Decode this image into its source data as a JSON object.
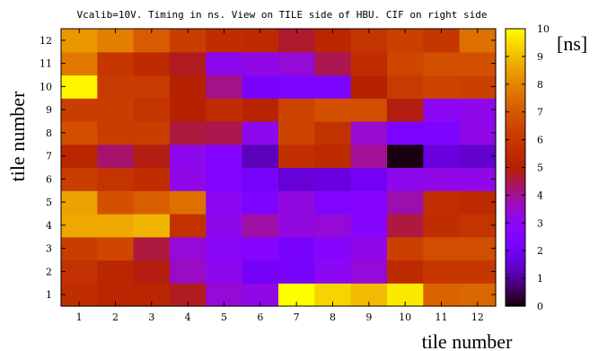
{
  "chart_data": {
    "type": "heatmap",
    "title": "Vcalib=10V. Timing in ns. View on TILE side of HBU. CIF on right side",
    "xlabel": "tile number",
    "ylabel": "tile number",
    "colorbar_unit": "[ns]",
    "x_categories": [
      "1",
      "2",
      "3",
      "4",
      "5",
      "6",
      "7",
      "8",
      "9",
      "10",
      "11",
      "12"
    ],
    "y_categories": [
      "1",
      "2",
      "3",
      "4",
      "5",
      "6",
      "7",
      "8",
      "9",
      "10",
      "11",
      "12"
    ],
    "color_range": [
      0,
      10
    ],
    "colorbar_ticks": [
      "0",
      "1",
      "2",
      "3",
      "4",
      "5",
      "6",
      "7",
      "8",
      "9",
      "10"
    ],
    "palette": "black-blue-purple-red-orange-yellow (gnuplot)",
    "values": [
      [
        5.6,
        5.3,
        5.3,
        4.8,
        3.4,
        3.2,
        10.0,
        9.4,
        9.0,
        9.7,
        7.3,
        7.4
      ],
      [
        5.8,
        5.3,
        4.9,
        3.6,
        3.1,
        2.1,
        2.2,
        3.0,
        3.4,
        5.5,
        6.0,
        6.0
      ],
      [
        6.2,
        6.5,
        4.6,
        3.4,
        2.9,
        2.7,
        2.3,
        2.7,
        3.2,
        6.3,
        6.7,
        6.7
      ],
      [
        8.7,
        8.7,
        8.9,
        5.8,
        3.1,
        3.9,
        3.3,
        3.4,
        2.7,
        4.6,
        5.6,
        5.9
      ],
      [
        8.6,
        6.8,
        7.2,
        7.6,
        3.0,
        2.4,
        3.3,
        2.5,
        2.7,
        3.8,
        5.7,
        5.5
      ],
      [
        6.2,
        5.9,
        5.6,
        3.2,
        2.5,
        2.2,
        1.6,
        1.7,
        2.0,
        3.1,
        3.2,
        3.2
      ],
      [
        5.3,
        4.3,
        4.9,
        3.1,
        2.6,
        1.3,
        5.7,
        5.5,
        4.0,
        0.1,
        1.7,
        1.5
      ],
      [
        6.8,
        6.2,
        6.2,
        4.6,
        4.5,
        3.1,
        6.4,
        5.8,
        3.5,
        2.4,
        2.4,
        3.2
      ],
      [
        6.2,
        6.2,
        5.9,
        5.1,
        5.6,
        5.2,
        6.4,
        6.8,
        6.7,
        4.9,
        3.0,
        3.1
      ],
      [
        9.9,
        6.1,
        6.1,
        5.1,
        4.1,
        2.3,
        2.4,
        2.4,
        5.1,
        6.1,
        6.4,
        6.3
      ],
      [
        7.8,
        6.0,
        5.5,
        4.8,
        3.1,
        3.2,
        3.4,
        4.5,
        5.6,
        6.5,
        6.8,
        6.8
      ],
      [
        8.4,
        7.9,
        7.1,
        6.2,
        5.6,
        5.5,
        4.7,
        5.3,
        5.9,
        6.3,
        6.0,
        7.6
      ]
    ],
    "values_note": "rows ordered tile-number row 1 (bottom) to row 12 (top); columns tile 1..12 left to right"
  }
}
